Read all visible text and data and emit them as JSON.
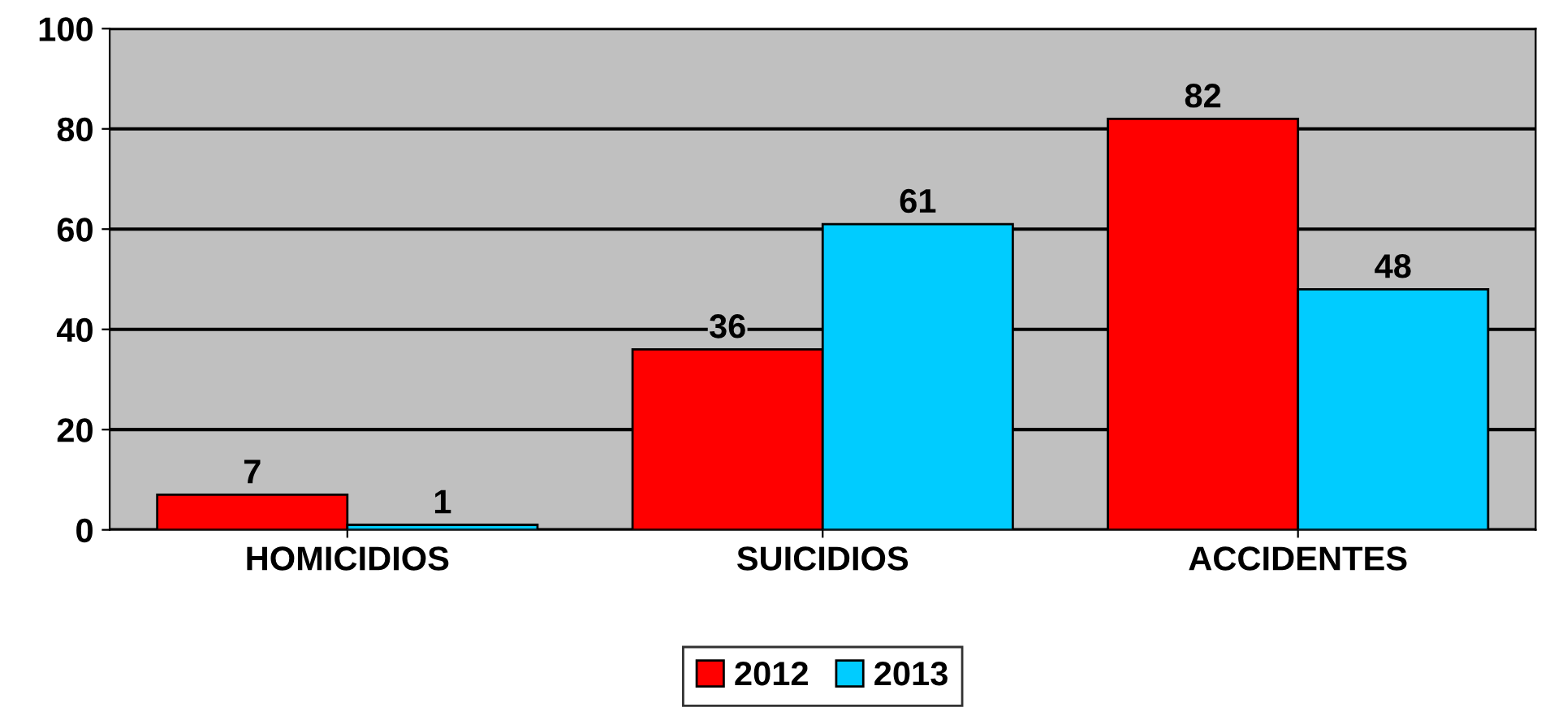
{
  "chart_data": {
    "type": "bar",
    "categories": [
      "HOMICIDIOS",
      "SUICIDIOS",
      "ACCIDENTES"
    ],
    "series": [
      {
        "name": "2012",
        "color": "#ff0000",
        "values": [
          7,
          36,
          82
        ]
      },
      {
        "name": "2013",
        "color": "#00ccff",
        "values": [
          1,
          61,
          48
        ]
      }
    ],
    "ylim": [
      0,
      100
    ],
    "yticks": [
      0,
      20,
      40,
      60,
      80,
      100
    ],
    "grid": "y",
    "legend": "bottom",
    "data_labels": true
  }
}
